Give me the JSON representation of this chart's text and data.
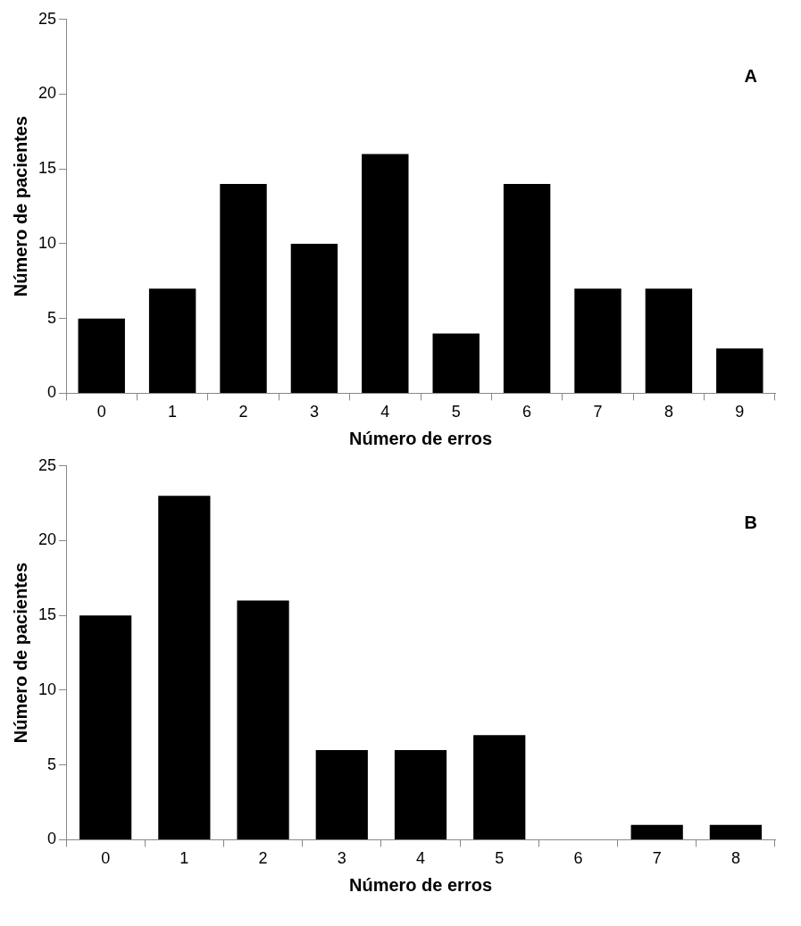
{
  "chart_data": [
    {
      "type": "bar",
      "categories": [
        "0",
        "1",
        "2",
        "3",
        "4",
        "5",
        "6",
        "7",
        "8",
        "9"
      ],
      "values": [
        5,
        7,
        14,
        10,
        16,
        4,
        14,
        7,
        7,
        3
      ],
      "color": "#000000",
      "ylim": [
        0,
        25
      ],
      "yticks": [
        0,
        5,
        10,
        15,
        20,
        25
      ],
      "xlabel": "Número de erros",
      "ylabel": "Número de pacientes",
      "annotations": [
        "A"
      ]
    },
    {
      "type": "bar",
      "categories": [
        "0",
        "1",
        "2",
        "3",
        "4",
        "5",
        "6",
        "7",
        "8"
      ],
      "values": [
        15,
        23,
        16,
        6,
        6,
        7,
        0,
        1,
        1
      ],
      "color": "#000000",
      "ylim": [
        0,
        25
      ],
      "yticks": [
        0,
        5,
        10,
        15,
        20,
        25
      ],
      "xlabel": "Número de erros",
      "ylabel": "Número de pacientes",
      "annotations": [
        "B"
      ]
    }
  ]
}
